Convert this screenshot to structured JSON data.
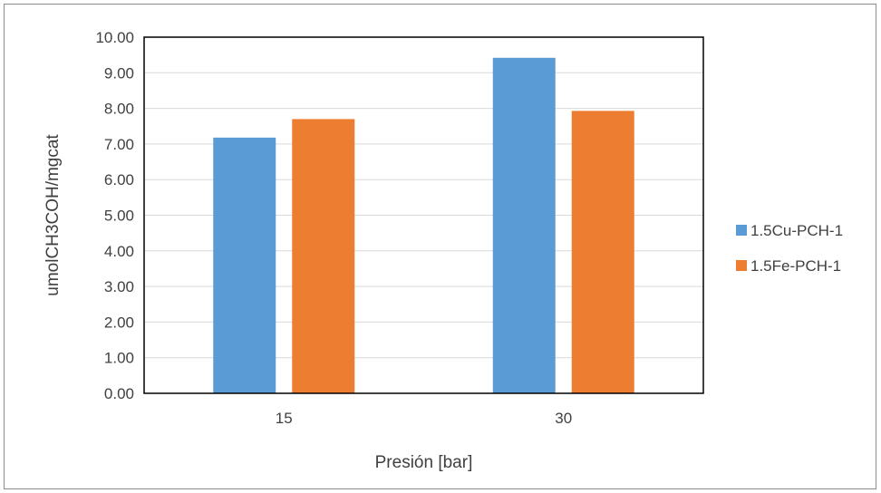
{
  "chart_data": {
    "type": "bar",
    "categories": [
      "15",
      "30"
    ],
    "series": [
      {
        "name": "1.5Cu-PCH-1",
        "values": [
          7.18,
          9.42
        ],
        "color": "#5B9BD5"
      },
      {
        "name": "1.5Fe-PCH-1",
        "values": [
          7.7,
          7.93
        ],
        "color": "#ED7D31"
      }
    ],
    "xlabel": "Presión [bar]",
    "ylabel": "umolCH3COH/mgcat",
    "ylim": [
      0,
      10
    ],
    "yticks": [
      "0.00",
      "1.00",
      "2.00",
      "3.00",
      "4.00",
      "5.00",
      "6.00",
      "7.00",
      "8.00",
      "9.00",
      "10.00"
    ],
    "grid": true,
    "legend_position": "right"
  }
}
